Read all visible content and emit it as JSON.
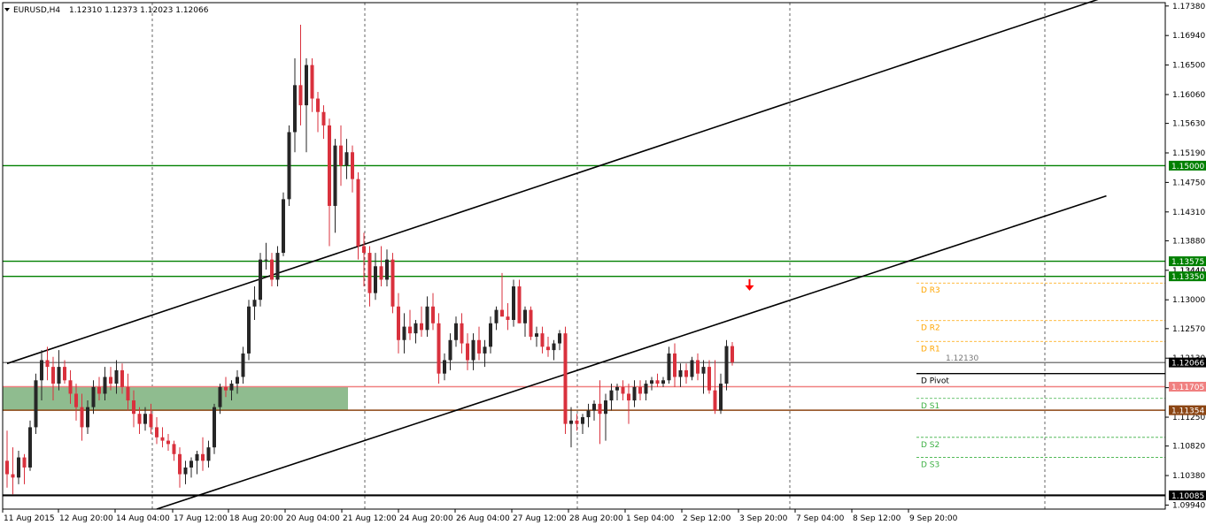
{
  "header": {
    "symbol": "EURUSD,H4",
    "ohlc": "1.12310 1.12373 1.12023 1.12066"
  },
  "chart_data": {
    "type": "candlestick",
    "symbol": "EURUSD",
    "timeframe": "H4",
    "ylim": [
      1.0988,
      1.1743
    ],
    "y_ticks": [
      "1.17380",
      "1.16940",
      "1.16500",
      "1.16060",
      "1.15630",
      "1.15190",
      "1.14750",
      "1.14310",
      "1.13880",
      "1.13440",
      "1.13000",
      "1.12570",
      "1.12130",
      "1.11690",
      "1.11250",
      "1.10820",
      "1.10380",
      "1.09940"
    ],
    "x_ticks": [
      "11 Aug 2015",
      "12 Aug 20:00",
      "14 Aug 04:00",
      "17 Aug 12:00",
      "18 Aug 20:00",
      "20 Aug 04:00",
      "21 Aug 12:00",
      "24 Aug 20:00",
      "26 Aug 04:00",
      "27 Aug 12:00",
      "28 Aug 20:00",
      "1 Sep 04:00",
      "2 Sep 12:00",
      "3 Sep 20:00",
      "7 Sep 04:00",
      "8 Sep 12:00",
      "9 Sep 20:00"
    ],
    "candles": [
      [
        1.106,
        1.1105,
        1.102,
        1.104
      ],
      [
        1.104,
        1.108,
        1.101,
        1.1035
      ],
      [
        1.1035,
        1.1075,
        1.1025,
        1.1065
      ],
      [
        1.1065,
        1.107,
        1.1025,
        1.105
      ],
      [
        1.105,
        1.112,
        1.1045,
        1.111
      ],
      [
        1.111,
        1.119,
        1.11,
        1.118
      ],
      [
        1.118,
        1.1225,
        1.115,
        1.121
      ],
      [
        1.121,
        1.123,
        1.118,
        1.12
      ],
      [
        1.12,
        1.1215,
        1.115,
        1.1175
      ],
      [
        1.1175,
        1.1225,
        1.1165,
        1.12
      ],
      [
        1.12,
        1.121,
        1.1175,
        1.118
      ],
      [
        1.118,
        1.1195,
        1.1145,
        1.116
      ],
      [
        1.116,
        1.1175,
        1.112,
        1.114
      ],
      [
        1.114,
        1.116,
        1.109,
        1.111
      ],
      [
        1.111,
        1.115,
        1.11,
        1.114
      ],
      [
        1.114,
        1.118,
        1.113,
        1.117
      ],
      [
        1.117,
        1.1185,
        1.115,
        1.116
      ],
      [
        1.116,
        1.12,
        1.115,
        1.1185
      ],
      [
        1.1185,
        1.12,
        1.1165,
        1.1175
      ],
      [
        1.1175,
        1.121,
        1.116,
        1.1195
      ],
      [
        1.1195,
        1.1205,
        1.116,
        1.117
      ],
      [
        1.117,
        1.119,
        1.1135,
        1.115
      ],
      [
        1.115,
        1.1165,
        1.111,
        1.113
      ],
      [
        1.113,
        1.114,
        1.11,
        1.1115
      ],
      [
        1.1115,
        1.114,
        1.1105,
        1.113
      ],
      [
        1.113,
        1.1145,
        1.11,
        1.111
      ],
      [
        1.111,
        1.1125,
        1.1085,
        1.1095
      ],
      [
        1.1095,
        1.111,
        1.108,
        1.109
      ],
      [
        1.109,
        1.11,
        1.1075,
        1.1085
      ],
      [
        1.1085,
        1.109,
        1.106,
        1.107
      ],
      [
        1.107,
        1.108,
        1.102,
        1.104
      ],
      [
        1.104,
        1.106,
        1.1025,
        1.105
      ],
      [
        1.105,
        1.1065,
        1.1035,
        1.106
      ],
      [
        1.106,
        1.1075,
        1.104,
        1.107
      ],
      [
        1.107,
        1.1095,
        1.1045,
        1.106
      ],
      [
        1.106,
        1.109,
        1.105,
        1.108
      ],
      [
        1.108,
        1.1145,
        1.107,
        1.114
      ],
      [
        1.114,
        1.1175,
        1.113,
        1.117
      ],
      [
        1.117,
        1.1185,
        1.1155,
        1.1165
      ],
      [
        1.1165,
        1.118,
        1.115,
        1.1175
      ],
      [
        1.1175,
        1.1195,
        1.116,
        1.1185
      ],
      [
        1.1185,
        1.123,
        1.1175,
        1.122
      ],
      [
        1.122,
        1.13,
        1.121,
        1.129
      ],
      [
        1.129,
        1.132,
        1.127,
        1.13
      ],
      [
        1.13,
        1.137,
        1.129,
        1.136
      ],
      [
        1.136,
        1.1385,
        1.1345,
        1.136
      ],
      [
        1.136,
        1.137,
        1.132,
        1.133
      ],
      [
        1.133,
        1.138,
        1.132,
        1.137
      ],
      [
        1.137,
        1.146,
        1.1365,
        1.145
      ],
      [
        1.145,
        1.156,
        1.144,
        1.155
      ],
      [
        1.155,
        1.166,
        1.152,
        1.162
      ],
      [
        1.162,
        1.171,
        1.156,
        1.159
      ],
      [
        1.159,
        1.166,
        1.152,
        1.165
      ],
      [
        1.165,
        1.166,
        1.158,
        1.16
      ],
      [
        1.16,
        1.161,
        1.155,
        1.158
      ],
      [
        1.158,
        1.159,
        1.154,
        1.156
      ],
      [
        1.156,
        1.157,
        1.138,
        1.144
      ],
      [
        1.144,
        1.154,
        1.14,
        1.153
      ],
      [
        1.153,
        1.156,
        1.147,
        1.15
      ],
      [
        1.15,
        1.154,
        1.148,
        1.152
      ],
      [
        1.152,
        1.153,
        1.146,
        1.148
      ],
      [
        1.148,
        1.149,
        1.136,
        1.138
      ],
      [
        1.138,
        1.14,
        1.132,
        1.137
      ],
      [
        1.137,
        1.138,
        1.129,
        1.131
      ],
      [
        1.131,
        1.137,
        1.13,
        1.135
      ],
      [
        1.135,
        1.138,
        1.132,
        1.133
      ],
      [
        1.133,
        1.1375,
        1.132,
        1.136
      ],
      [
        1.136,
        1.137,
        1.128,
        1.129
      ],
      [
        1.129,
        1.131,
        1.122,
        1.124
      ],
      [
        1.124,
        1.128,
        1.122,
        1.126
      ],
      [
        1.126,
        1.1285,
        1.124,
        1.125
      ],
      [
        1.125,
        1.127,
        1.1235,
        1.1265
      ],
      [
        1.1265,
        1.129,
        1.1245,
        1.1255
      ],
      [
        1.1255,
        1.1305,
        1.1245,
        1.129
      ],
      [
        1.129,
        1.131,
        1.1255,
        1.1265
      ],
      [
        1.1265,
        1.128,
        1.1175,
        1.119
      ],
      [
        1.119,
        1.122,
        1.118,
        1.121
      ],
      [
        1.121,
        1.125,
        1.1195,
        1.124
      ],
      [
        1.124,
        1.1275,
        1.123,
        1.1265
      ],
      [
        1.1265,
        1.128,
        1.122,
        1.1235
      ],
      [
        1.1235,
        1.125,
        1.1195,
        1.121
      ],
      [
        1.121,
        1.125,
        1.1195,
        1.124
      ],
      [
        1.124,
        1.126,
        1.121,
        1.122
      ],
      [
        1.122,
        1.124,
        1.12,
        1.123
      ],
      [
        1.123,
        1.1275,
        1.122,
        1.1265
      ],
      [
        1.1265,
        1.129,
        1.1255,
        1.1285
      ],
      [
        1.1285,
        1.134,
        1.1275,
        1.1275
      ],
      [
        1.1275,
        1.1295,
        1.1255,
        1.127
      ],
      [
        1.127,
        1.133,
        1.126,
        1.132
      ],
      [
        1.132,
        1.133,
        1.1265,
        1.1265
      ],
      [
        1.1265,
        1.129,
        1.1245,
        1.1285
      ],
      [
        1.1285,
        1.129,
        1.124,
        1.1245
      ],
      [
        1.1245,
        1.126,
        1.123,
        1.125
      ],
      [
        1.125,
        1.126,
        1.122,
        1.123
      ],
      [
        1.123,
        1.1245,
        1.1215,
        1.1225
      ],
      [
        1.1225,
        1.124,
        1.121,
        1.1235
      ],
      [
        1.1235,
        1.1255,
        1.1225,
        1.125
      ],
      [
        1.125,
        1.126,
        1.11,
        1.1115
      ],
      [
        1.1115,
        1.114,
        1.108,
        1.112
      ],
      [
        1.112,
        1.113,
        1.1105,
        1.1115
      ],
      [
        1.1115,
        1.113,
        1.11,
        1.1125
      ],
      [
        1.1125,
        1.1145,
        1.111,
        1.1135
      ],
      [
        1.1135,
        1.115,
        1.112,
        1.1145
      ],
      [
        1.1145,
        1.118,
        1.1085,
        1.113
      ],
      [
        1.113,
        1.116,
        1.109,
        1.115
      ],
      [
        1.115,
        1.1175,
        1.1135,
        1.1165
      ],
      [
        1.1165,
        1.1175,
        1.115,
        1.117
      ],
      [
        1.117,
        1.118,
        1.115,
        1.116
      ],
      [
        1.116,
        1.1175,
        1.1115,
        1.115
      ],
      [
        1.115,
        1.118,
        1.114,
        1.117
      ],
      [
        1.117,
        1.118,
        1.115,
        1.116
      ],
      [
        1.116,
        1.118,
        1.115,
        1.1175
      ],
      [
        1.1175,
        1.1185,
        1.1165,
        1.118
      ],
      [
        1.118,
        1.119,
        1.117,
        1.1175
      ],
      [
        1.1175,
        1.1185,
        1.117,
        1.118
      ],
      [
        1.118,
        1.123,
        1.1175,
        1.122
      ],
      [
        1.122,
        1.1235,
        1.117,
        1.1185
      ],
      [
        1.1185,
        1.1205,
        1.117,
        1.1195
      ],
      [
        1.1195,
        1.1205,
        1.1175,
        1.1185
      ],
      [
        1.1185,
        1.1215,
        1.118,
        1.121
      ],
      [
        1.121,
        1.122,
        1.118,
        1.119
      ],
      [
        1.119,
        1.121,
        1.116,
        1.12
      ],
      [
        1.12,
        1.121,
        1.116,
        1.1165
      ],
      [
        1.1165,
        1.121,
        1.113,
        1.1135
      ],
      [
        1.1135,
        1.119,
        1.113,
        1.1175
      ],
      [
        1.1175,
        1.124,
        1.1165,
        1.1231
      ],
      [
        1.1231,
        1.1237,
        1.1202,
        1.1207
      ]
    ],
    "trendlines": [
      {
        "from": [
          0,
          1.1205
        ],
        "to": [
          191,
          1.1752
        ]
      },
      {
        "from": [
          26,
          1.0988
        ],
        "to": [
          191,
          1.1455
        ]
      }
    ],
    "horizontal_levels": [
      {
        "price": 1.15,
        "label": "1.15000",
        "color": "#008000",
        "style": "solid"
      },
      {
        "price": 1.13575,
        "label": "1.13575",
        "color": "#008000",
        "style": "solid"
      },
      {
        "price": 1.1335,
        "label": "1.13350",
        "color": "#008000",
        "style": "solid"
      },
      {
        "price": 1.12066,
        "label": "1.12066",
        "color": "#000000",
        "style": "thin"
      },
      {
        "price": 1.11705,
        "label": "1.11705",
        "color": "#f08080",
        "style": "solid"
      },
      {
        "price": 1.11354,
        "label": "1.11354",
        "color": "#8b4513",
        "style": "solid"
      },
      {
        "price": 1.10085,
        "label": "1.10085",
        "color": "#000000",
        "style": "thick"
      }
    ],
    "pivots": [
      {
        "name": "D R3",
        "price": 1.1325,
        "color": "#ffa500"
      },
      {
        "name": "D R2",
        "price": 1.1269,
        "color": "#ffa500"
      },
      {
        "name": "D R1",
        "price": 1.1238,
        "color": "#ffa500"
      },
      {
        "name": "D Pivot",
        "price": 1.119,
        "color": "#000000"
      },
      {
        "name": "D S1",
        "price": 1.1153,
        "color": "#3cb043"
      },
      {
        "name": "D S2",
        "price": 1.1095,
        "color": "#3cb043"
      },
      {
        "name": "D S3",
        "price": 1.1065,
        "color": "#3cb043"
      }
    ],
    "zone": {
      "from": 1.1135,
      "to": 1.11705,
      "end_index": 58,
      "color": "#8fbc8f"
    },
    "axis_overlap_label": "1.13440",
    "cutoff_label": "1.12130",
    "arrow": {
      "index": 129,
      "price": 1.1315,
      "color": "#ff0000",
      "direction": "down"
    },
    "colors": {
      "bull": "#262626",
      "bear": "#d9313d",
      "grid": "#000000",
      "axis": "#000000"
    }
  }
}
